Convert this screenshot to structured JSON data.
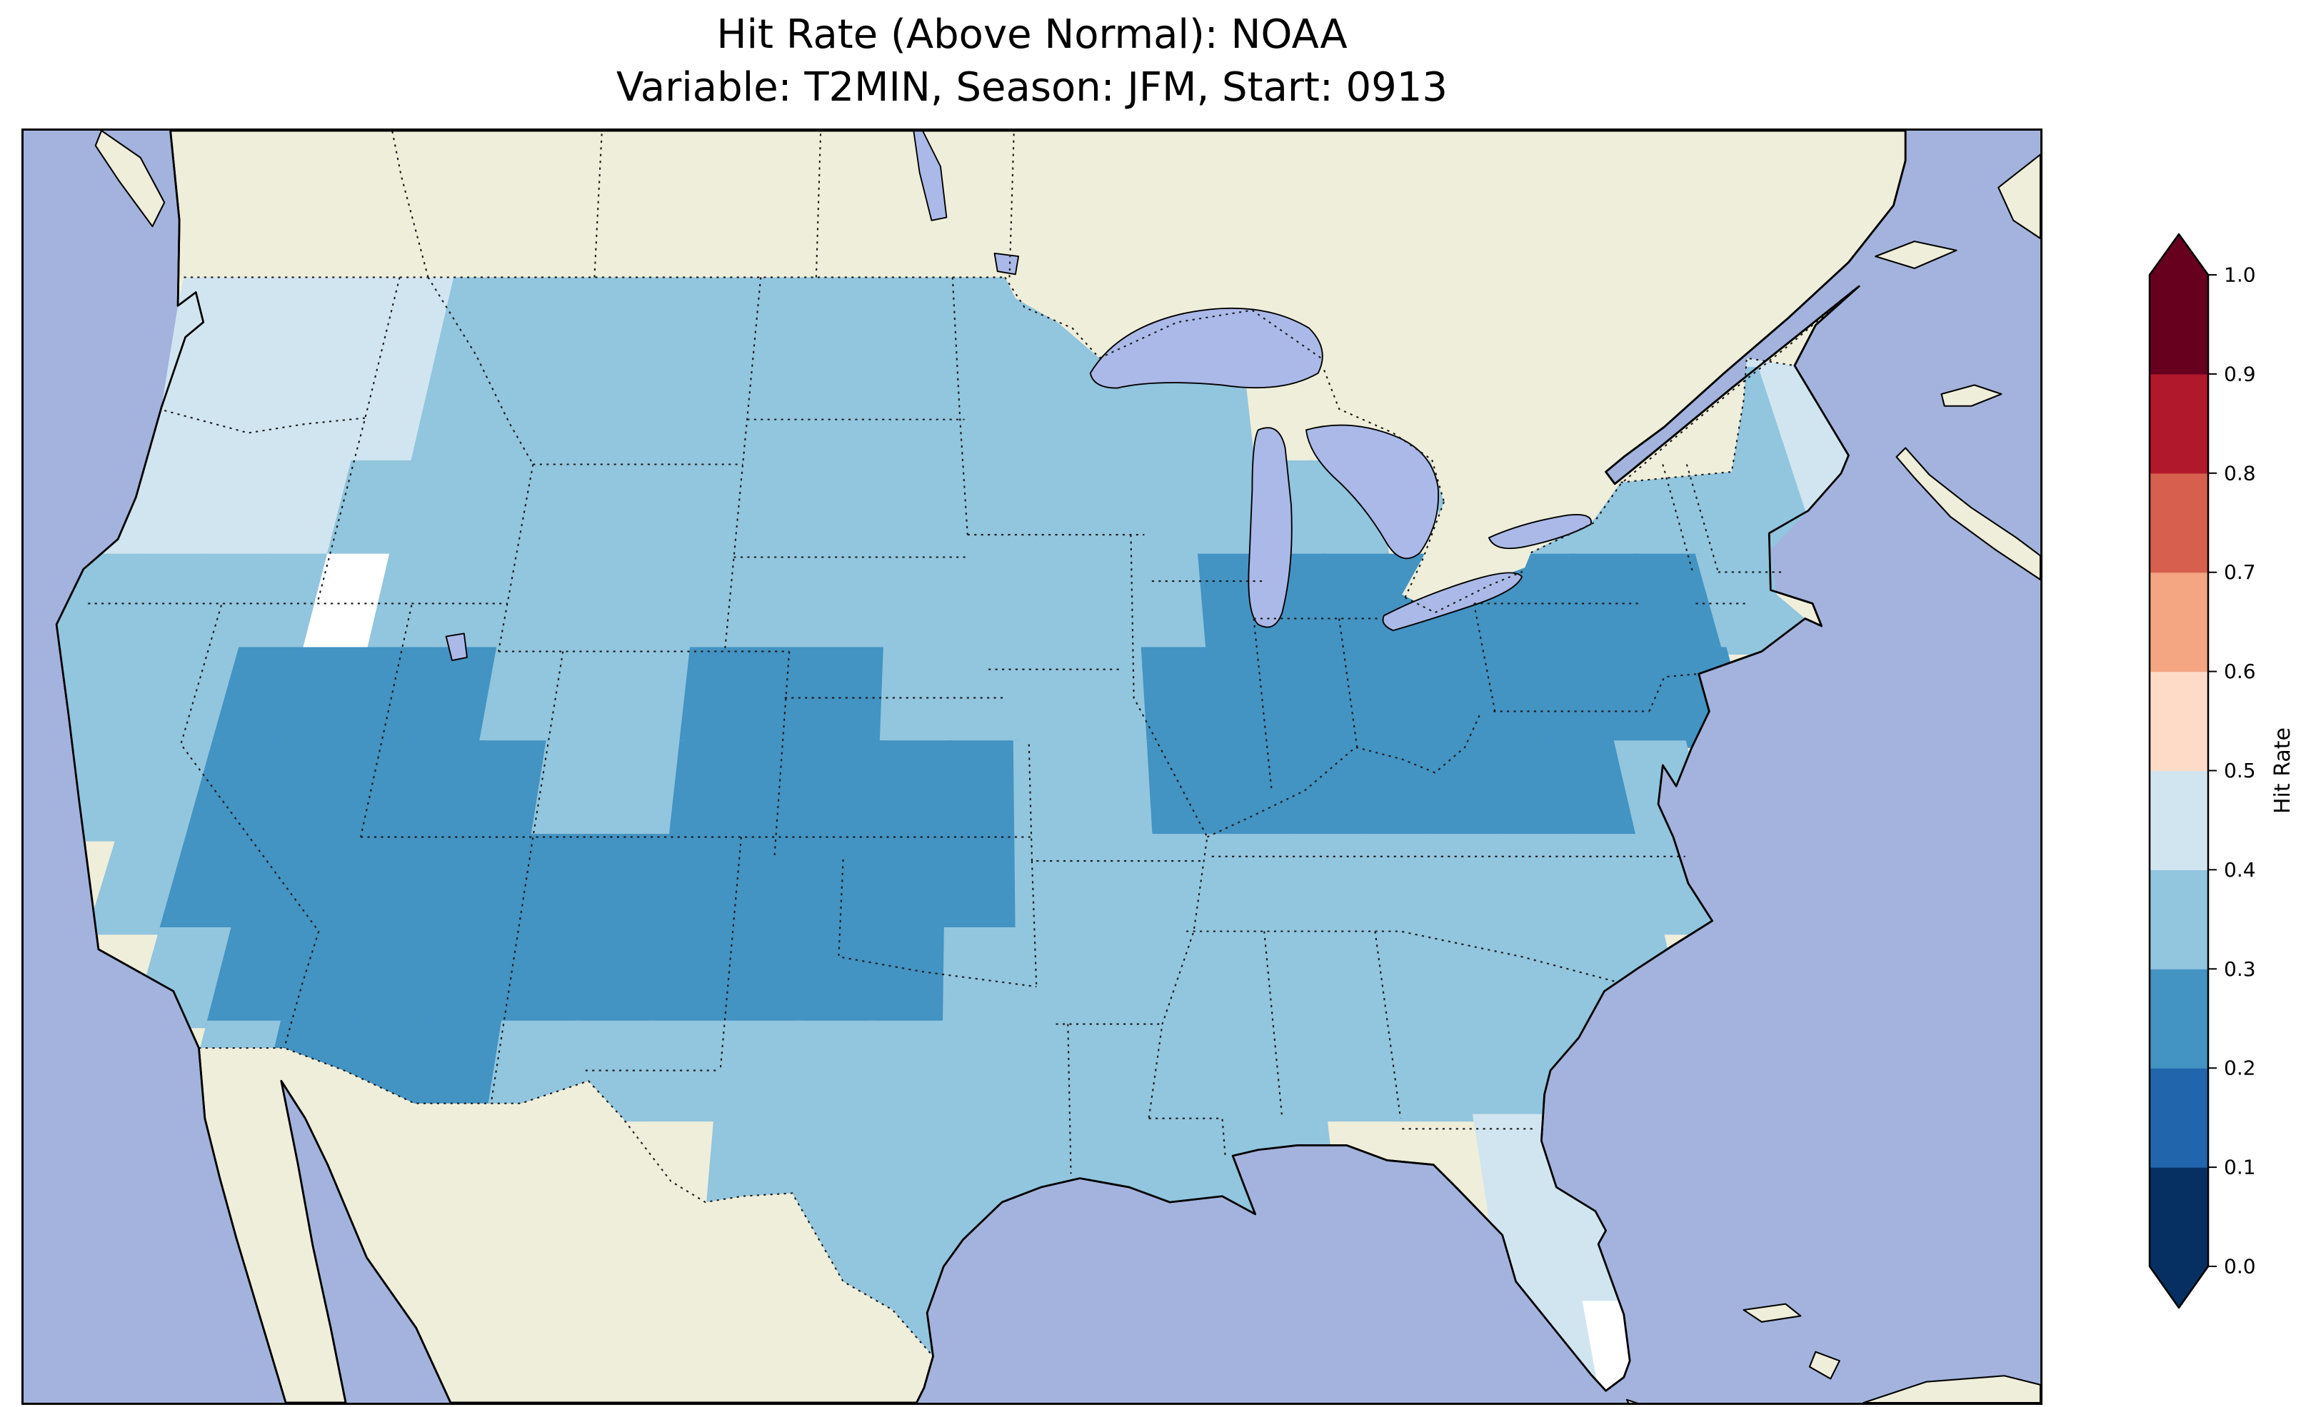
{
  "title": {
    "line1": "Hit Rate (Above Normal): NOAA",
    "line2": "Variable: T2MIN, Season: JFM, Start: 0913"
  },
  "colorbar": {
    "label": "Hit Rate",
    "ticks": [
      "0.0",
      "0.1",
      "0.2",
      "0.3",
      "0.4",
      "0.5",
      "0.6",
      "0.7",
      "0.8",
      "0.9",
      "1.0"
    ],
    "colors": [
      "#053061",
      "#2166ac",
      "#4393c3",
      "#92c5de",
      "#d1e5f0",
      "#fddbc7",
      "#f4a582",
      "#d6604d",
      "#b2182b",
      "#67001f"
    ],
    "under_color": "#053061",
    "over_color": "#67001f"
  },
  "map": {
    "ocean_color": "#a3b3dd",
    "land_color": "#efeeda",
    "lake_color": "#abb9e8"
  },
  "chart_data": {
    "type": "heatmap",
    "title": "Hit Rate (Above Normal): NOAA",
    "subtitle": "Variable: T2MIN, Season: JFM, Start: 0913",
    "colorbar_label": "Hit Rate",
    "colorbar_range": [
      0.0,
      1.0
    ],
    "colorbar_tick_step": 0.1,
    "colormap": "RdBu_r (discrete, extended both ends)",
    "value_bins": {
      "2": "0.2-0.3",
      "3": "0.3-0.4",
      "4": "0.4-0.5",
      "5": "0.5-0.6",
      "w": "missing/masked"
    },
    "palette": {
      "2": "#4393c3",
      "3": "#92c5de",
      "4": "#d1e5f0",
      "5": "#fddbc7",
      "w": "#ffffff"
    },
    "grid": {
      "lon_start": -125,
      "lat_start": 49,
      "cell_deg": 2,
      "rows": [
        "444443333333333333.........44",
        "4444433333333333333........34",
        "444433333333333333333.3333334",
        "3333w33333333333332222222233.",
        "33322223332223333222222222...",
        "3332222233222223322222223....",
        "..32222222222223333333333....",
        "...322222222223333333333.....",
        "....3222333333333333333......",
        "...........33333333..44......",
        "............333......44......",
        ".............3.......4w......"
      ]
    },
    "regions_summary": [
      {
        "area": "Pacific Northwest (E Washington, Oregon, N Idaho)",
        "hit_rate": "0.40-0.50"
      },
      {
        "area": "Most of CONUS interior / northern tier / South",
        "hit_rate": "0.30-0.40"
      },
      {
        "area": "Southwest blob (S Nevada, Utah, Arizona, New Mexico)",
        "hit_rate": "0.20-0.30"
      },
      {
        "area": "Southern Plains blob (E Colorado, Kansas, Oklahoma, TX panhandle)",
        "hit_rate": "0.20-0.30"
      },
      {
        "area": "Midwest / Ohio Valley / Mid-Atlantic (Illinois to New Jersey)",
        "hit_rate": "0.20-0.30"
      },
      {
        "area": "Florida peninsula",
        "hit_rate": "0.40-0.50"
      },
      {
        "area": "Northern Maine",
        "hit_rate": "0.40-0.50"
      }
    ]
  }
}
